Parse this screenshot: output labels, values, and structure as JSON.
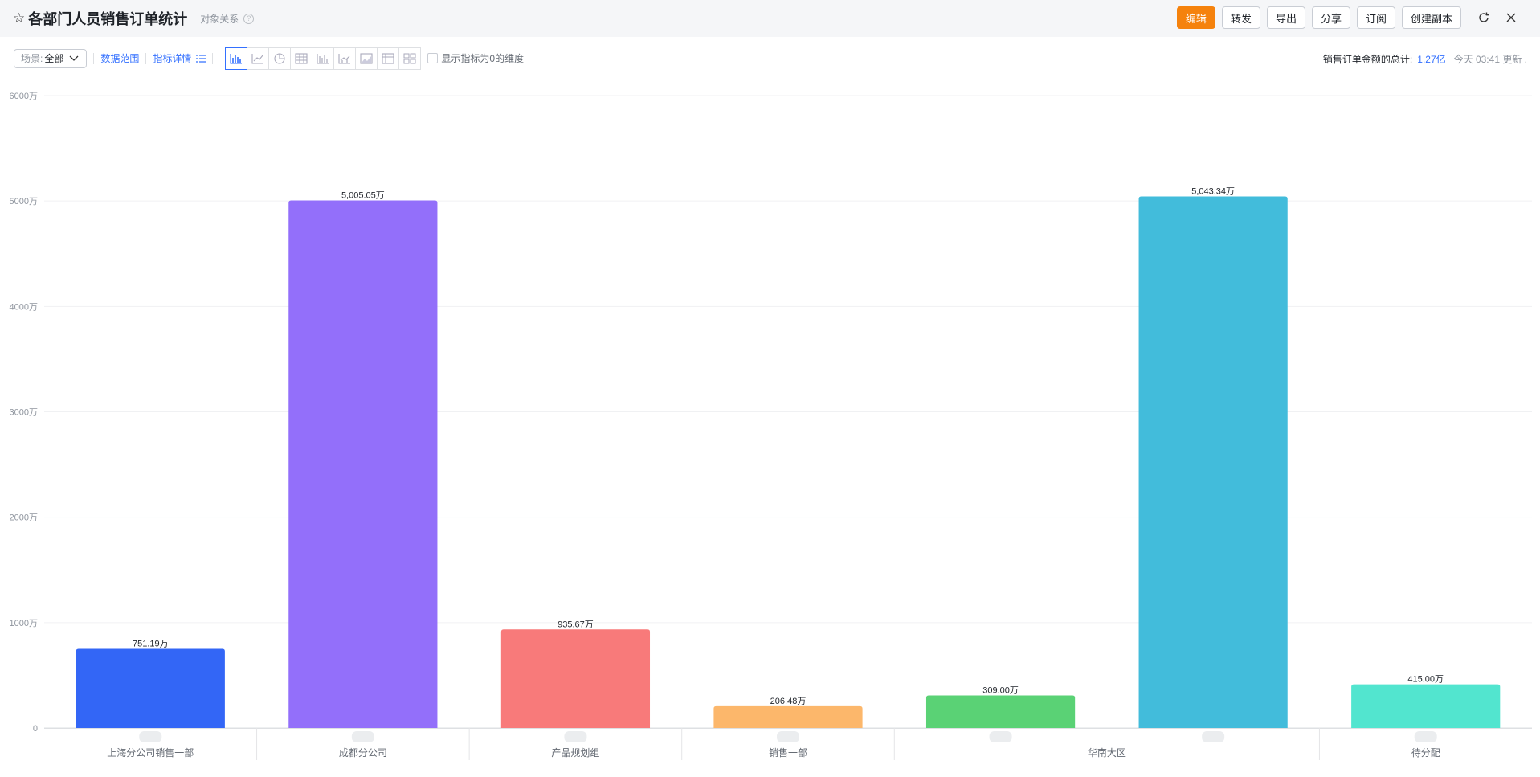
{
  "header": {
    "title": "各部门人员销售订单统计",
    "subtitle": "对象关系",
    "help": "?",
    "buttons": {
      "edit": "编辑",
      "forward": "转发",
      "export": "导出",
      "share": "分享",
      "subscribe": "订阅",
      "copy": "创建副本"
    }
  },
  "toolbar": {
    "scene_label": "场景:",
    "scene_value": "全部",
    "data_range": "数据范围",
    "metric_detail": "指标详情",
    "show_zero": "显示指标为0的维度",
    "total_label": "销售订单金额的总计:",
    "total_value": "1.27亿",
    "updated": "今天 03:41 更新 ."
  },
  "colors": {
    "accent": "#3370ff",
    "primary_button": "#f5820d"
  },
  "chart_data": {
    "type": "bar",
    "yticks": [
      "0",
      "1000万",
      "2000万",
      "3000万",
      "4000万",
      "5000万",
      "6000万"
    ],
    "ylim": [
      0,
      6000
    ],
    "grid": true,
    "bars": [
      {
        "value": 751.19,
        "label": "751.19万",
        "color": "#3366f6"
      },
      {
        "value": 5005.05,
        "label": "5,005.05万",
        "color": "#936ffa"
      },
      {
        "value": 935.67,
        "label": "935.67万",
        "color": "#f87a7a"
      },
      {
        "value": 206.48,
        "label": "206.48万",
        "color": "#fcb76b"
      },
      {
        "value": 309.0,
        "label": "309.00万",
        "color": "#5ad275"
      },
      {
        "value": 5043.34,
        "label": "5,043.34万",
        "color": "#42bcdb"
      },
      {
        "value": 415.0,
        "label": "415.00万",
        "color": "#52e5cf"
      }
    ],
    "groups": [
      {
        "label": "上海分公司销售一部",
        "bars": 1
      },
      {
        "label": "成都分公司",
        "bars": 1
      },
      {
        "label": "产品规划组",
        "bars": 1
      },
      {
        "label": "销售一部",
        "bars": 1
      },
      {
        "label": "华南大区",
        "bars": 2
      },
      {
        "label": "待分配",
        "bars": 1
      }
    ]
  }
}
